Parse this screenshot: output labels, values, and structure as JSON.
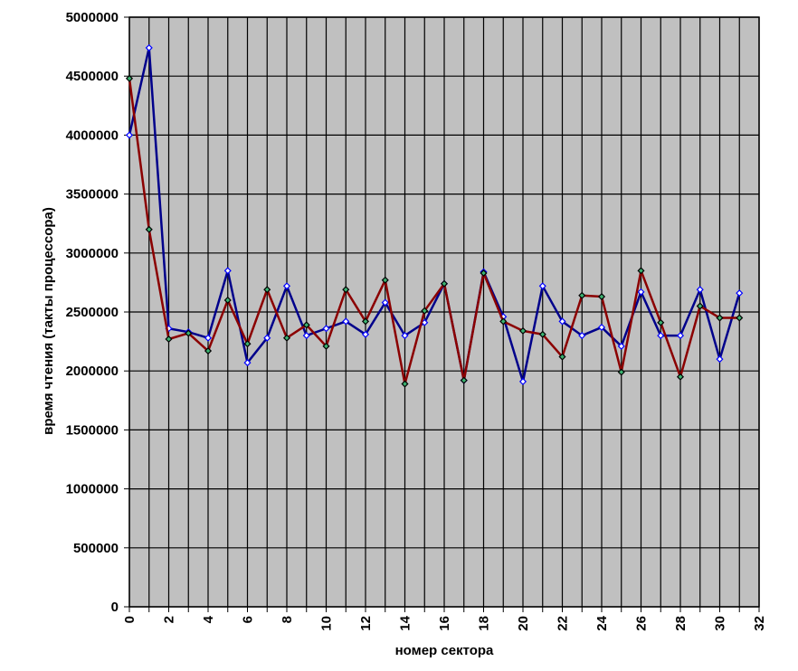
{
  "chart_data": {
    "type": "line",
    "xlabel": "номер сектора",
    "ylabel": "время чтения (такты процессора)",
    "xlim": [
      0,
      32
    ],
    "ylim": [
      0,
      5000000
    ],
    "x_ticks": [
      0,
      2,
      4,
      6,
      8,
      10,
      12,
      14,
      16,
      18,
      20,
      22,
      24,
      26,
      28,
      30,
      32
    ],
    "y_ticks": [
      0,
      500000,
      1000000,
      1500000,
      2000000,
      2500000,
      3000000,
      3500000,
      4000000,
      4500000,
      5000000
    ],
    "grid": true,
    "plot_background": "#c0c0c0",
    "x": [
      0,
      1,
      2,
      3,
      4,
      5,
      6,
      7,
      8,
      9,
      10,
      11,
      12,
      13,
      14,
      15,
      16,
      17,
      18,
      19,
      20,
      21,
      22,
      23,
      24,
      25,
      26,
      27,
      28,
      29,
      30,
      31
    ],
    "series": [
      {
        "color": "#00008b",
        "marker_fill": "#ffffff",
        "marker_stroke": "#0000ff",
        "values": [
          4000000,
          4740000,
          2360000,
          2330000,
          2280000,
          2850000,
          2070000,
          2280000,
          2720000,
          2300000,
          2360000,
          2420000,
          2310000,
          2580000,
          2300000,
          2410000,
          2740000,
          1920000,
          2840000,
          2460000,
          1910000,
          2720000,
          2420000,
          2300000,
          2370000,
          2210000,
          2670000,
          2300000,
          2300000,
          2690000,
          2100000,
          2660000
        ]
      },
      {
        "color": "#8b0000",
        "marker_fill": "#3cb371",
        "marker_stroke": "#000000",
        "values": [
          4480000,
          3200000,
          2270000,
          2320000,
          2170000,
          2600000,
          2230000,
          2690000,
          2280000,
          2390000,
          2210000,
          2690000,
          2420000,
          2770000,
          1890000,
          2510000,
          2740000,
          1920000,
          2830000,
          2420000,
          2340000,
          2310000,
          2120000,
          2640000,
          2630000,
          1990000,
          2850000,
          2410000,
          1950000,
          2550000,
          2450000,
          2450000
        ]
      }
    ]
  }
}
